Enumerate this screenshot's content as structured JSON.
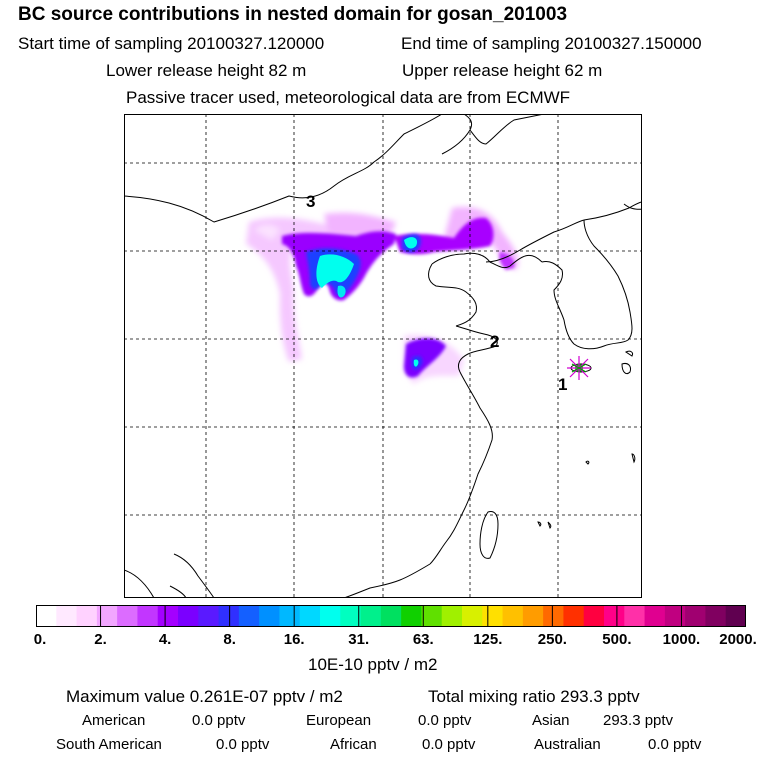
{
  "header": {
    "title": "BC  source contributions in nested domain for gosan_201003",
    "start_label": "Start time of sampling 20100327.120000",
    "end_label": "End time of sampling 20100327.150000",
    "lower_label": "Lower release height   82 m",
    "upper_label": "Upper release height   62 m",
    "tracer_label": "Passive tracer used, meteorological data are from ECMWF"
  },
  "map": {
    "markers": {
      "m1": "1",
      "m2": "2",
      "m3": "3"
    },
    "colors": {
      "land_line": "#000000",
      "grid": "#000000",
      "station": "#00c000",
      "station_star": "#d000d0"
    }
  },
  "colorbar": {
    "tick_labels": [
      "0.",
      "2.",
      "4.",
      "8.",
      "16.",
      "31.",
      "63.",
      "125.",
      "250.",
      "500.",
      "1000.",
      "2000."
    ],
    "colors": [
      "#ffffff",
      "#ffe9ff",
      "#ffd2ff",
      "#f2a6ff",
      "#dc6cff",
      "#c236ff",
      "#a400ff",
      "#7b00ff",
      "#5a1aff",
      "#3030ff",
      "#1460ff",
      "#0090ff",
      "#00b8ff",
      "#00d8ff",
      "#00ffee",
      "#00ffc0",
      "#00f08c",
      "#00e060",
      "#10d000",
      "#60e000",
      "#a0f000",
      "#d8f000",
      "#ffe000",
      "#ffc000",
      "#ff9c00",
      "#ff6a00",
      "#ff3000",
      "#ff0040",
      "#ff0088",
      "#ff30a8",
      "#e00090",
      "#c00080",
      "#a00070",
      "#800060",
      "#600050"
    ],
    "units": "10E-10 pptv / m2"
  },
  "summary": {
    "max_value": "Maximum value  0.261E-07 pptv / m2",
    "total_mixing": "Total mixing ratio      293.3 pptv",
    "regions": [
      {
        "name": "American",
        "value": "0.0 pptv"
      },
      {
        "name": "European",
        "value": "0.0 pptv"
      },
      {
        "name": "Asian",
        "value": "293.3 pptv"
      },
      {
        "name": "South American",
        "value": "0.0 pptv"
      },
      {
        "name": "African",
        "value": "0.0 pptv"
      },
      {
        "name": "Australian",
        "value": "0.0 pptv"
      }
    ]
  }
}
